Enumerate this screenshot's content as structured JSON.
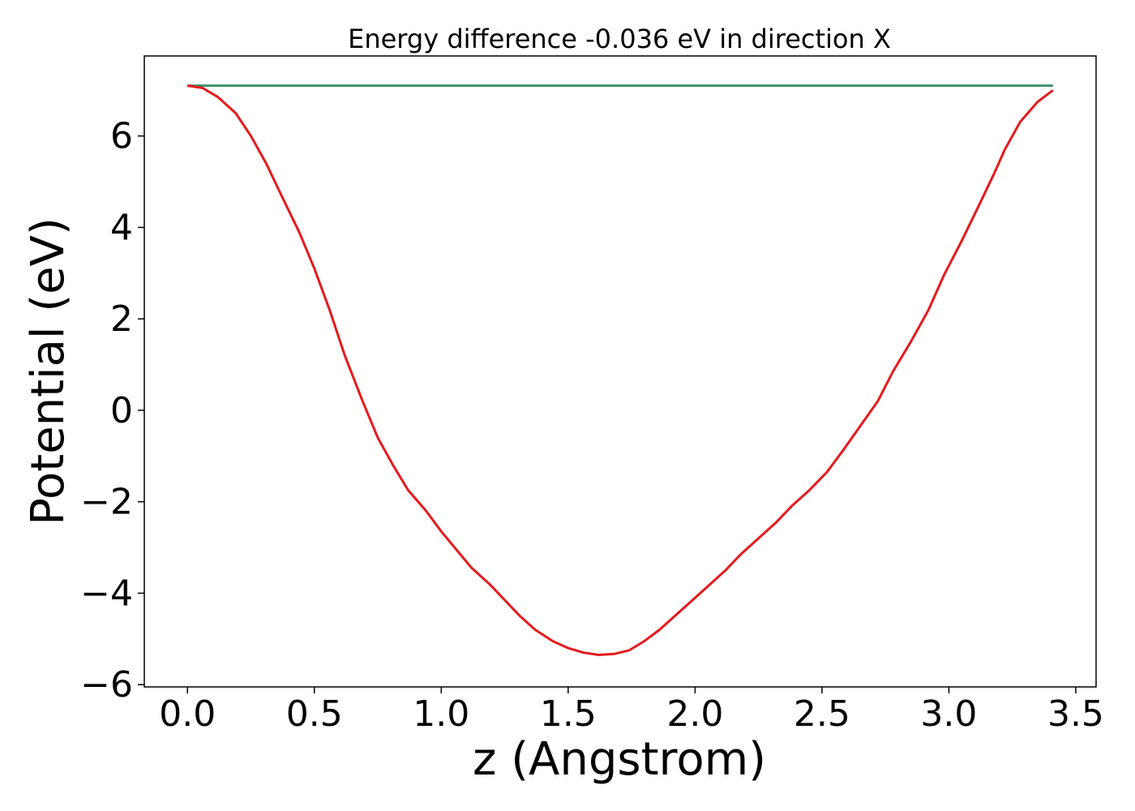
{
  "chart_data": {
    "type": "line",
    "title": "Energy difference -0.036 eV in direction X",
    "xlabel": "z (Angstrom)",
    "ylabel": "Potential (eV)",
    "xlim": [
      -0.17,
      3.58
    ],
    "ylim": [
      -6.05,
      7.75
    ],
    "xticks": [
      0.0,
      0.5,
      1.0,
      1.5,
      2.0,
      2.5,
      3.0,
      3.5
    ],
    "xtick_labels": [
      "0.0",
      "0.5",
      "1.0",
      "1.5",
      "2.0",
      "2.5",
      "3.0",
      "3.5"
    ],
    "yticks": [
      -6,
      -4,
      -2,
      0,
      2,
      4,
      6
    ],
    "ytick_labels": [
      "−6",
      "−4",
      "−2",
      "0",
      "2",
      "4",
      "6"
    ],
    "grid": false,
    "legend": "none",
    "series": [
      {
        "color": "#3f8f6a",
        "x": [
          0.0,
          3.41
        ],
        "y": [
          7.1,
          7.1
        ]
      },
      {
        "color": "#e41a1c",
        "x": [
          0.0,
          0.06,
          0.12,
          0.19,
          0.25,
          0.31,
          0.37,
          0.44,
          0.5,
          0.56,
          0.62,
          0.69,
          0.75,
          0.81,
          0.87,
          0.94,
          1.0,
          1.06,
          1.12,
          1.19,
          1.25,
          1.31,
          1.37,
          1.44,
          1.5,
          1.56,
          1.62,
          1.68,
          1.74,
          1.8,
          1.86,
          1.92,
          1.98,
          2.05,
          2.12,
          2.18,
          2.25,
          2.32,
          2.38,
          2.45,
          2.52,
          2.58,
          2.65,
          2.72,
          2.78,
          2.85,
          2.92,
          2.98,
          3.05,
          3.12,
          3.18,
          3.22,
          3.28,
          3.35,
          3.41
        ],
        "y": [
          7.1,
          7.05,
          6.85,
          6.5,
          6.0,
          5.4,
          4.7,
          3.9,
          3.1,
          2.2,
          1.2,
          0.2,
          -0.6,
          -1.2,
          -1.75,
          -2.2,
          -2.65,
          -3.05,
          -3.45,
          -3.8,
          -4.15,
          -4.5,
          -4.8,
          -5.05,
          -5.2,
          -5.3,
          -5.35,
          -5.33,
          -5.25,
          -5.05,
          -4.8,
          -4.5,
          -4.2,
          -3.85,
          -3.5,
          -3.15,
          -2.8,
          -2.45,
          -2.1,
          -1.75,
          -1.35,
          -0.9,
          -0.35,
          0.2,
          0.85,
          1.5,
          2.2,
          2.95,
          3.7,
          4.5,
          5.2,
          5.7,
          6.3,
          6.75,
          7.0
        ]
      }
    ],
    "colors": {
      "axes": "#000000",
      "background": "#ffffff"
    }
  }
}
